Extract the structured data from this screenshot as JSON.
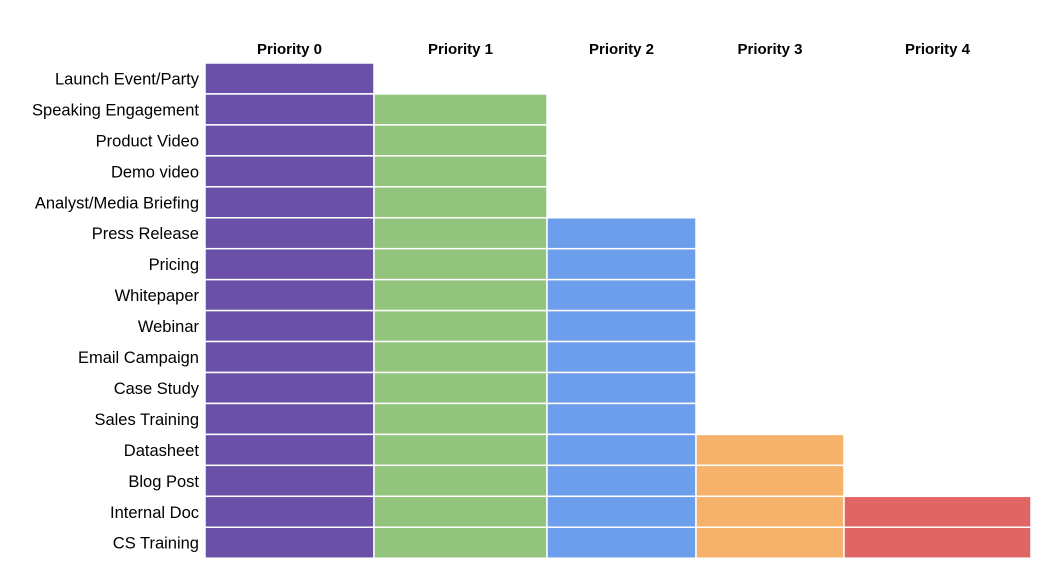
{
  "chart_data": {
    "type": "table",
    "columns": [
      "Priority 0",
      "Priority 1",
      "Priority 2",
      "Priority 3",
      "Priority 4"
    ],
    "rows": [
      {
        "label": "Launch Event/Party",
        "levels": 1
      },
      {
        "label": "Speaking Engagement",
        "levels": 2
      },
      {
        "label": "Product Video",
        "levels": 2
      },
      {
        "label": "Demo video",
        "levels": 2
      },
      {
        "label": "Analyst/Media Briefing",
        "levels": 2
      },
      {
        "label": "Press Release",
        "levels": 3
      },
      {
        "label": "Pricing",
        "levels": 3
      },
      {
        "label": "Whitepaper",
        "levels": 3
      },
      {
        "label": "Webinar",
        "levels": 3
      },
      {
        "label": "Email Campaign",
        "levels": 3
      },
      {
        "label": "Case Study",
        "levels": 3
      },
      {
        "label": "Sales Training",
        "levels": 3
      },
      {
        "label": "Datasheet",
        "levels": 4
      },
      {
        "label": "Blog Post",
        "levels": 4
      },
      {
        "label": "Internal Doc",
        "levels": 5
      },
      {
        "label": "CS Training",
        "levels": 5
      }
    ],
    "colors": [
      "#6a50a7",
      "#93c47d",
      "#6d9eeb",
      "#f6b26b",
      "#e06666"
    ],
    "grid": false
  }
}
